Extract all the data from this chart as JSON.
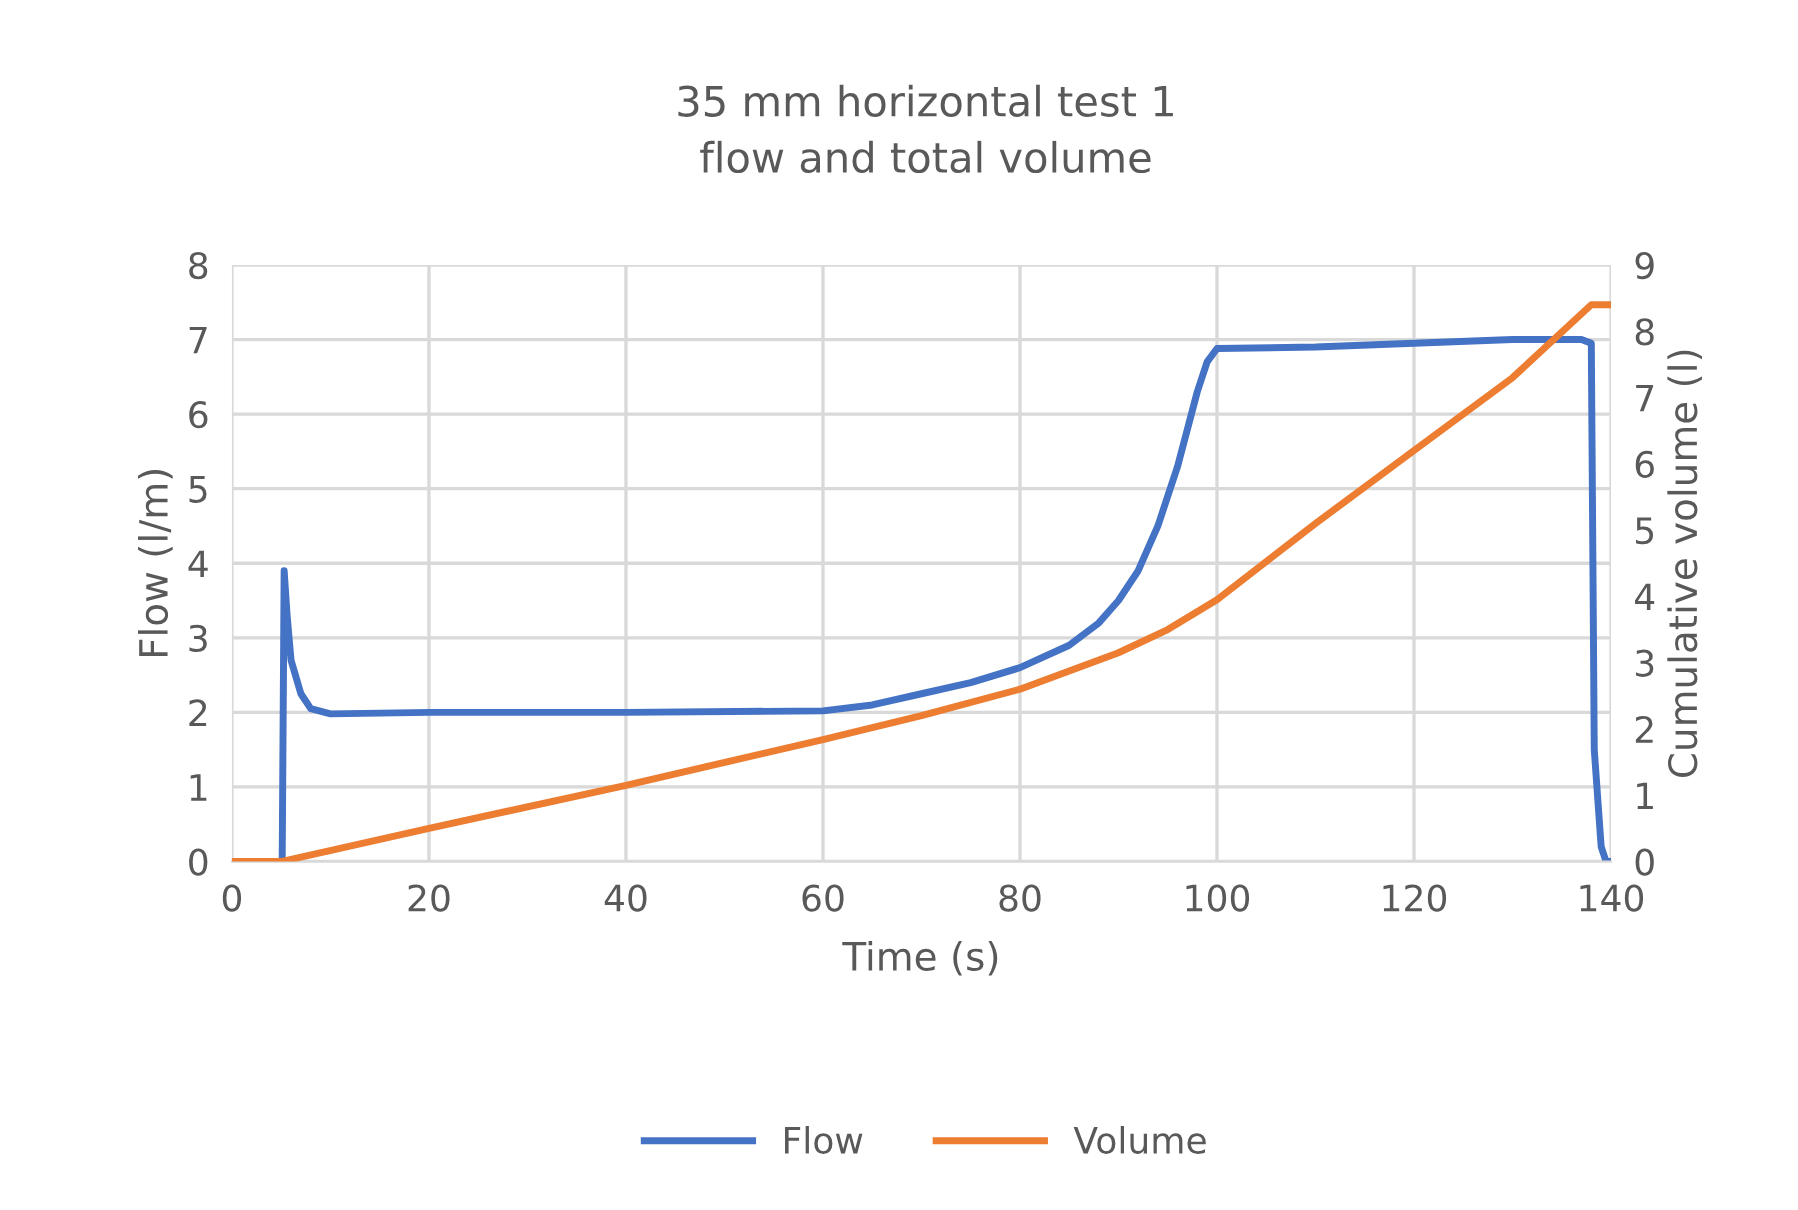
{
  "chart_data": {
    "type": "line",
    "title": "35 mm horizontal test 1\nflow and total volume",
    "xlabel": "Time (s)",
    "ylabel": "Flow (l/m)",
    "y2label": "Cumulative volume (l)",
    "xlim": [
      0,
      140
    ],
    "xticks": [
      0,
      20,
      40,
      60,
      80,
      100,
      120,
      140
    ],
    "ylim": [
      0,
      8
    ],
    "yticks": [
      0,
      1,
      2,
      3,
      4,
      5,
      6,
      7,
      8
    ],
    "y2lim": [
      0,
      9
    ],
    "y2ticks": [
      0,
      1,
      2,
      3,
      4,
      5,
      6,
      7,
      8,
      9
    ],
    "grid": true,
    "legend": "bottom",
    "marker": "none",
    "line_style": "solid",
    "series": [
      {
        "name": "Flow",
        "color": "#4472c4",
        "x": [
          0,
          5,
          5.1,
          5.3,
          5.6,
          6,
          7,
          8,
          10,
          20,
          40,
          60,
          65,
          70,
          75,
          80,
          85,
          88,
          90,
          92,
          94,
          96,
          98,
          99,
          100,
          110,
          120,
          130,
          137,
          138,
          138.3,
          139,
          139.5,
          140
        ],
        "values": [
          0,
          0,
          0,
          3.9,
          3.3,
          2.7,
          2.25,
          2.05,
          1.98,
          2.0,
          2.0,
          2.02,
          2.1,
          2.25,
          2.4,
          2.6,
          2.9,
          3.2,
          3.5,
          3.9,
          4.5,
          5.3,
          6.3,
          6.7,
          6.88,
          6.9,
          6.95,
          7.0,
          7.0,
          6.95,
          1.5,
          0.2,
          0,
          0
        ]
      },
      {
        "name": "Volume",
        "color": "#ed7d31",
        "axis": "y2",
        "x": [
          0,
          5,
          20,
          40,
          60,
          70,
          80,
          90,
          95,
          100,
          110,
          120,
          130,
          138,
          140
        ],
        "values": [
          0,
          0,
          0.5,
          1.15,
          1.84,
          2.2,
          2.6,
          3.15,
          3.5,
          3.95,
          5.1,
          6.2,
          7.3,
          8.4,
          8.4
        ]
      }
    ]
  }
}
